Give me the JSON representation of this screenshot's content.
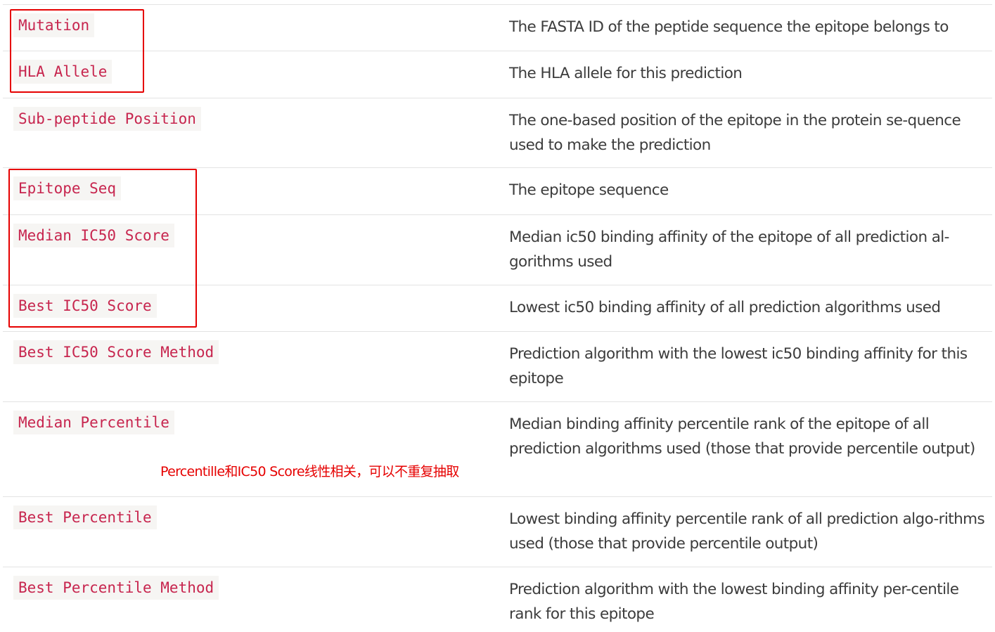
{
  "rows": [
    {
      "field": "Mutation",
      "description": "The FASTA ID of the peptide sequence the epitope belongs to"
    },
    {
      "field": "HLA Allele",
      "description": "The HLA allele for this prediction"
    },
    {
      "field": "Sub-peptide Position",
      "description": "The one-based position of the epitope in the protein se-quence used to make the prediction"
    },
    {
      "field": "Epitope Seq",
      "description": "The epitope sequence"
    },
    {
      "field": "Median IC50 Score",
      "description": "Median ic50 binding affinity of the epitope of all prediction al-gorithms used"
    },
    {
      "field": "Best IC50 Score",
      "description": "Lowest ic50 binding affinity of all prediction algorithms used"
    },
    {
      "field": "Best IC50 Score Method",
      "description": "Prediction algorithm with the lowest ic50 binding affinity for this epitope"
    },
    {
      "field": "Median Percentile",
      "description": "Median binding affinity percentile rank of the epitope of all prediction algorithms used (those that provide percentile output)"
    },
    {
      "field": "Best Percentile",
      "description": "Lowest binding affinity percentile rank of all prediction algo-rithms used (those that provide percentile output)"
    },
    {
      "field": "Best Percentile Method",
      "description": "Prediction algorithm with the lowest binding affinity per-centile rank for this epitope"
    }
  ],
  "annotation": {
    "note": "Percentille和IC50 Score线性相关，可以不重复抽取",
    "color": "#e60000"
  }
}
